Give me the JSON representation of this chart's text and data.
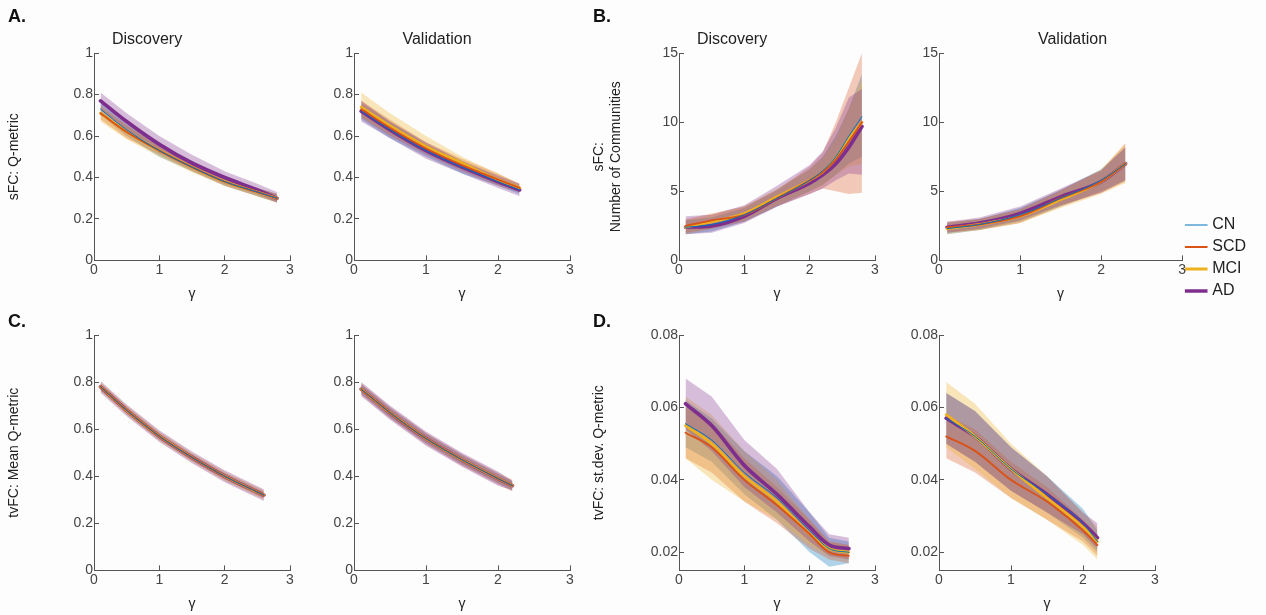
{
  "chart_data": [
    {
      "type": "line",
      "title": "Discovery",
      "xlabel": "γ",
      "ylabel": "sFC: Q-metric",
      "annotations": [
        "A."
      ],
      "x": [
        0.1,
        0.5,
        1,
        1.5,
        2,
        2.5,
        2.8
      ],
      "xlim": [
        0,
        3
      ],
      "xticks": [
        0,
        1,
        2,
        3
      ],
      "ylim": [
        0,
        1
      ],
      "yticks": [
        0,
        0.2,
        0.4,
        0.6,
        0.8,
        1
      ],
      "series": [
        {
          "color": "#0072bd",
          "values": [
            0.73,
            0.63,
            0.53,
            0.45,
            0.38,
            0.33,
            0.3
          ],
          "lower": [
            0.7,
            0.6,
            0.5,
            0.43,
            0.36,
            0.31,
            0.28
          ],
          "upper": [
            0.76,
            0.66,
            0.56,
            0.47,
            0.4,
            0.35,
            0.32
          ]
        },
        {
          "color": "#d95319",
          "values": [
            0.71,
            0.62,
            0.53,
            0.45,
            0.38,
            0.33,
            0.3
          ],
          "lower": [
            0.68,
            0.59,
            0.51,
            0.43,
            0.36,
            0.31,
            0.28
          ],
          "upper": [
            0.74,
            0.65,
            0.55,
            0.47,
            0.4,
            0.35,
            0.32
          ]
        },
        {
          "color": "#edb120",
          "values": [
            0.71,
            0.62,
            0.53,
            0.45,
            0.38,
            0.33,
            0.3
          ],
          "lower": [
            0.67,
            0.585,
            0.5,
            0.425,
            0.36,
            0.31,
            0.28
          ],
          "upper": [
            0.75,
            0.655,
            0.56,
            0.475,
            0.4,
            0.35,
            0.32
          ]
        },
        {
          "color": "#7e2f8e",
          "values": [
            0.77,
            0.67,
            0.56,
            0.47,
            0.4,
            0.34,
            0.3
          ],
          "lower": [
            0.73,
            0.63,
            0.52,
            0.44,
            0.37,
            0.32,
            0.28
          ],
          "upper": [
            0.81,
            0.71,
            0.6,
            0.51,
            0.43,
            0.37,
            0.33
          ]
        }
      ]
    },
    {
      "type": "line",
      "title": "Validation",
      "xlabel": "γ",
      "x": [
        0.1,
        0.5,
        1,
        1.5,
        2,
        2.3
      ],
      "xlim": [
        0,
        3
      ],
      "xticks": [
        0,
        1,
        2,
        3
      ],
      "ylim": [
        0,
        1
      ],
      "yticks": [
        0,
        0.2,
        0.4,
        0.6,
        0.8,
        1
      ],
      "series": [
        {
          "color": "#0072bd",
          "values": [
            0.72,
            0.63,
            0.53,
            0.45,
            0.38,
            0.34
          ],
          "lower": [
            0.68,
            0.59,
            0.5,
            0.42,
            0.36,
            0.32
          ],
          "upper": [
            0.76,
            0.67,
            0.56,
            0.48,
            0.4,
            0.36
          ]
        },
        {
          "color": "#d95319",
          "values": [
            0.73,
            0.64,
            0.54,
            0.46,
            0.39,
            0.35
          ],
          "lower": [
            0.69,
            0.6,
            0.51,
            0.43,
            0.36,
            0.33
          ],
          "upper": [
            0.77,
            0.68,
            0.57,
            0.49,
            0.42,
            0.37
          ]
        },
        {
          "color": "#edb120",
          "values": [
            0.74,
            0.65,
            0.55,
            0.47,
            0.39,
            0.35
          ],
          "lower": [
            0.69,
            0.61,
            0.52,
            0.44,
            0.37,
            0.33
          ],
          "upper": [
            0.81,
            0.71,
            0.6,
            0.5,
            0.42,
            0.37
          ]
        },
        {
          "color": "#7e2f8e",
          "values": [
            0.72,
            0.63,
            0.53,
            0.45,
            0.38,
            0.34
          ],
          "lower": [
            0.67,
            0.59,
            0.49,
            0.42,
            0.35,
            0.31
          ],
          "upper": [
            0.77,
            0.67,
            0.57,
            0.48,
            0.41,
            0.37
          ]
        }
      ]
    },
    {
      "type": "line",
      "title": "Discovery",
      "xlabel": "γ",
      "ylabel": "sFC:\nNumber of Communities",
      "annotations": [
        "B."
      ],
      "x": [
        0.1,
        0.5,
        1,
        1.5,
        2,
        2.2,
        2.4,
        2.6,
        2.8
      ],
      "xlim": [
        0,
        3
      ],
      "xticks": [
        0,
        1,
        2,
        3
      ],
      "ylim": [
        0,
        15
      ],
      "yticks": [
        0,
        5,
        10,
        15
      ],
      "series": [
        {
          "color": "#0072bd",
          "values": [
            2.4,
            2.6,
            3.3,
            4.5,
            5.8,
            6.5,
            7.5,
            9,
            10.4
          ],
          "lower": [
            1.9,
            2.1,
            2.8,
            3.9,
            5,
            5.5,
            6.2,
            7,
            7.5
          ],
          "upper": [
            2.9,
            3.1,
            3.8,
            5.1,
            6.6,
            7.5,
            9,
            11,
            13.5
          ]
        },
        {
          "color": "#d95319",
          "values": [
            2.5,
            2.9,
            3.3,
            4.5,
            5.8,
            6.4,
            7.3,
            8.6,
            10
          ],
          "lower": [
            2,
            2.3,
            2.8,
            3.9,
            4.8,
            5.2,
            5,
            4.8,
            4.9
          ],
          "upper": [
            3,
            3.4,
            3.9,
            5.1,
            6.8,
            7.8,
            10,
            12.5,
            15
          ]
        },
        {
          "color": "#edb120",
          "values": [
            2.4,
            2.8,
            3.4,
            4.6,
            5.8,
            6.4,
            7.4,
            8.8,
            10
          ],
          "lower": [
            1.9,
            2.3,
            2.9,
            4,
            5,
            5.4,
            6.2,
            6.8,
            7
          ],
          "upper": [
            2.9,
            3.3,
            3.9,
            5.2,
            6.6,
            7.4,
            8.8,
            11,
            13
          ]
        },
        {
          "color": "#7e2f8e",
          "values": [
            2.4,
            2.5,
            3.2,
            4.5,
            5.6,
            6.2,
            7,
            8.2,
            9.7
          ],
          "lower": [
            1.9,
            2,
            2.7,
            3.9,
            4.8,
            5.2,
            5.8,
            6.3,
            6.2
          ],
          "upper": [
            3.2,
            3.3,
            4,
            5.4,
            6.9,
            7.9,
            9.6,
            11.8,
            12.4
          ]
        }
      ]
    },
    {
      "type": "line",
      "title": "Validation",
      "xlabel": "γ",
      "legend": "right",
      "x": [
        0.1,
        0.5,
        1,
        1.5,
        2,
        2.3
      ],
      "xlim": [
        0,
        3
      ],
      "xticks": [
        0,
        1,
        2,
        3
      ],
      "ylim": [
        0,
        15
      ],
      "yticks": [
        0,
        5,
        10,
        15
      ],
      "series": [
        {
          "name": "CN",
          "color": "#0072bd",
          "values": [
            2.3,
            2.6,
            3.3,
            4.5,
            5.8,
            7
          ],
          "lower": [
            1.9,
            2.2,
            2.8,
            3.9,
            5,
            5.8
          ],
          "upper": [
            2.7,
            3,
            3.8,
            5.1,
            6.6,
            8.2
          ]
        },
        {
          "name": "SCD",
          "color": "#d95319",
          "values": [
            2.4,
            2.6,
            3.2,
            4.5,
            5.7,
            7
          ],
          "lower": [
            2,
            2.2,
            2.7,
            3.9,
            4.9,
            5.7
          ],
          "upper": [
            2.8,
            3,
            3.7,
            5.1,
            6.5,
            8.5
          ]
        },
        {
          "name": "MCI",
          "color": "#edb120",
          "values": [
            2.3,
            2.6,
            3.2,
            4.4,
            5.7,
            7
          ],
          "lower": [
            1.9,
            2.2,
            2.7,
            3.8,
            4.8,
            5.6
          ],
          "upper": [
            2.7,
            3,
            3.7,
            5,
            6.6,
            8.4
          ]
        },
        {
          "name": "AD",
          "color": "#7e2f8e",
          "values": [
            2.4,
            2.7,
            3.4,
            4.6,
            5.7,
            7
          ],
          "lower": [
            2,
            2.3,
            2.9,
            4,
            4.9,
            5.8
          ],
          "upper": [
            2.8,
            3.1,
            3.9,
            5.2,
            6.5,
            8.2
          ]
        }
      ]
    },
    {
      "type": "line",
      "xlabel": "γ",
      "ylabel": "tvFC: Mean Q-metric",
      "annotations": [
        "C."
      ],
      "x": [
        0.1,
        0.5,
        1,
        1.5,
        2,
        2.6
      ],
      "xlim": [
        0,
        3
      ],
      "xticks": [
        0,
        1,
        2,
        3
      ],
      "ylim": [
        0,
        1
      ],
      "yticks": [
        0,
        0.2,
        0.4,
        0.6,
        0.8,
        1
      ],
      "series": [
        {
          "color": "#0072bd",
          "values": [
            0.78,
            0.68,
            0.57,
            0.48,
            0.4,
            0.32
          ],
          "lower": [
            0.77,
            0.67,
            0.56,
            0.47,
            0.39,
            0.31
          ],
          "upper": [
            0.79,
            0.69,
            0.58,
            0.49,
            0.41,
            0.33
          ]
        },
        {
          "color": "#d95319",
          "values": [
            0.78,
            0.68,
            0.57,
            0.48,
            0.4,
            0.32
          ],
          "lower": [
            0.765,
            0.665,
            0.555,
            0.465,
            0.385,
            0.305
          ],
          "upper": [
            0.795,
            0.695,
            0.585,
            0.495,
            0.415,
            0.335
          ]
        },
        {
          "color": "#edb120",
          "values": [
            0.78,
            0.68,
            0.57,
            0.48,
            0.4,
            0.32
          ],
          "lower": [
            0.76,
            0.66,
            0.55,
            0.46,
            0.38,
            0.3
          ],
          "upper": [
            0.8,
            0.7,
            0.59,
            0.5,
            0.42,
            0.34
          ]
        },
        {
          "color": "#7e2f8e",
          "values": [
            0.78,
            0.68,
            0.57,
            0.48,
            0.4,
            0.32
          ],
          "lower": [
            0.755,
            0.655,
            0.545,
            0.455,
            0.375,
            0.295
          ],
          "upper": [
            0.805,
            0.705,
            0.595,
            0.505,
            0.425,
            0.345
          ]
        }
      ]
    },
    {
      "type": "line",
      "xlabel": "γ",
      "x": [
        0.1,
        0.5,
        1,
        1.5,
        2,
        2.2
      ],
      "xlim": [
        0,
        3
      ],
      "xticks": [
        0,
        1,
        2,
        3
      ],
      "ylim": [
        0,
        1
      ],
      "yticks": [
        0,
        0.2,
        0.4,
        0.6,
        0.8,
        1
      ],
      "series": [
        {
          "color": "#0072bd",
          "values": [
            0.77,
            0.67,
            0.56,
            0.47,
            0.39,
            0.36
          ],
          "lower": [
            0.75,
            0.65,
            0.54,
            0.45,
            0.37,
            0.34
          ],
          "upper": [
            0.79,
            0.69,
            0.58,
            0.49,
            0.41,
            0.38
          ]
        },
        {
          "color": "#d95319",
          "values": [
            0.77,
            0.67,
            0.56,
            0.47,
            0.39,
            0.36
          ],
          "lower": [
            0.745,
            0.645,
            0.535,
            0.445,
            0.365,
            0.335
          ],
          "upper": [
            0.795,
            0.695,
            0.585,
            0.495,
            0.415,
            0.385
          ]
        },
        {
          "color": "#edb120",
          "values": [
            0.77,
            0.67,
            0.56,
            0.47,
            0.39,
            0.36
          ],
          "lower": [
            0.755,
            0.655,
            0.545,
            0.455,
            0.375,
            0.345
          ],
          "upper": [
            0.785,
            0.685,
            0.575,
            0.485,
            0.405,
            0.375
          ]
        },
        {
          "color": "#7e2f8e",
          "values": [
            0.77,
            0.67,
            0.56,
            0.47,
            0.39,
            0.36
          ],
          "lower": [
            0.74,
            0.64,
            0.53,
            0.44,
            0.36,
            0.34
          ],
          "upper": [
            0.8,
            0.7,
            0.59,
            0.5,
            0.42,
            0.38
          ]
        }
      ]
    },
    {
      "type": "line",
      "xlabel": "γ",
      "ylabel": "tvFC: st.dev. Q-metric",
      "annotations": [
        "D."
      ],
      "x": [
        0.1,
        0.5,
        1,
        1.5,
        2,
        2.3,
        2.6
      ],
      "xlim": [
        0,
        3
      ],
      "xticks": [
        0,
        1,
        2,
        3
      ],
      "ylim": [
        0.015,
        0.08
      ],
      "yticks": [
        0.02,
        0.04,
        0.06,
        0.08
      ],
      "series": [
        {
          "color": "#0072bd",
          "values": [
            0.0555,
            0.051,
            0.042,
            0.035,
            0.026,
            0.021,
            0.02
          ],
          "lower": [
            0.049,
            0.045,
            0.036,
            0.029,
            0.02,
            0.016,
            0.017
          ],
          "upper": [
            0.062,
            0.057,
            0.048,
            0.041,
            0.031,
            0.024,
            0.023
          ]
        },
        {
          "color": "#d95319",
          "values": [
            0.053,
            0.049,
            0.04,
            0.033,
            0.025,
            0.02,
            0.019
          ],
          "lower": [
            0.046,
            0.042,
            0.034,
            0.028,
            0.021,
            0.018,
            0.017
          ],
          "upper": [
            0.06,
            0.056,
            0.046,
            0.038,
            0.029,
            0.023,
            0.022
          ]
        },
        {
          "color": "#edb120",
          "values": [
            0.055,
            0.05,
            0.041,
            0.034,
            0.025,
            0.021,
            0.02
          ],
          "lower": [
            0.046,
            0.04,
            0.034,
            0.029,
            0.022,
            0.019,
            0.018
          ],
          "upper": [
            0.063,
            0.058,
            0.048,
            0.04,
            0.029,
            0.023,
            0.022
          ]
        },
        {
          "color": "#7e2f8e",
          "values": [
            0.061,
            0.055,
            0.044,
            0.036,
            0.027,
            0.022,
            0.021
          ],
          "lower": [
            0.054,
            0.048,
            0.038,
            0.031,
            0.023,
            0.019,
            0.018
          ],
          "upper": [
            0.068,
            0.063,
            0.051,
            0.043,
            0.031,
            0.025,
            0.024
          ]
        }
      ]
    },
    {
      "type": "line",
      "xlabel": "γ",
      "x": [
        0.1,
        0.5,
        1,
        1.5,
        2,
        2.2
      ],
      "xlim": [
        0,
        3
      ],
      "xticks": [
        0,
        1,
        2,
        3
      ],
      "ylim": [
        0.015,
        0.08
      ],
      "yticks": [
        0.02,
        0.04,
        0.06,
        0.08
      ],
      "series": [
        {
          "color": "#0072bd",
          "values": [
            0.057,
            0.052,
            0.043,
            0.036,
            0.028,
            0.023
          ],
          "lower": [
            0.05,
            0.045,
            0.037,
            0.031,
            0.024,
            0.02
          ],
          "upper": [
            0.064,
            0.059,
            0.049,
            0.041,
            0.032,
            0.026
          ]
        },
        {
          "color": "#d95319",
          "values": [
            0.052,
            0.048,
            0.04,
            0.034,
            0.026,
            0.022
          ],
          "lower": [
            0.046,
            0.042,
            0.035,
            0.029,
            0.023,
            0.019
          ],
          "upper": [
            0.058,
            0.054,
            0.045,
            0.038,
            0.029,
            0.025
          ]
        },
        {
          "color": "#edb120",
          "values": [
            0.058,
            0.052,
            0.043,
            0.035,
            0.027,
            0.023
          ],
          "lower": [
            0.049,
            0.043,
            0.035,
            0.029,
            0.022,
            0.018
          ],
          "upper": [
            0.067,
            0.061,
            0.05,
            0.041,
            0.031,
            0.027
          ]
        },
        {
          "color": "#7e2f8e",
          "values": [
            0.057,
            0.052,
            0.043,
            0.036,
            0.028,
            0.024
          ],
          "lower": [
            0.05,
            0.045,
            0.037,
            0.031,
            0.025,
            0.021
          ],
          "upper": [
            0.064,
            0.059,
            0.049,
            0.041,
            0.031,
            0.028
          ]
        }
      ]
    }
  ]
}
